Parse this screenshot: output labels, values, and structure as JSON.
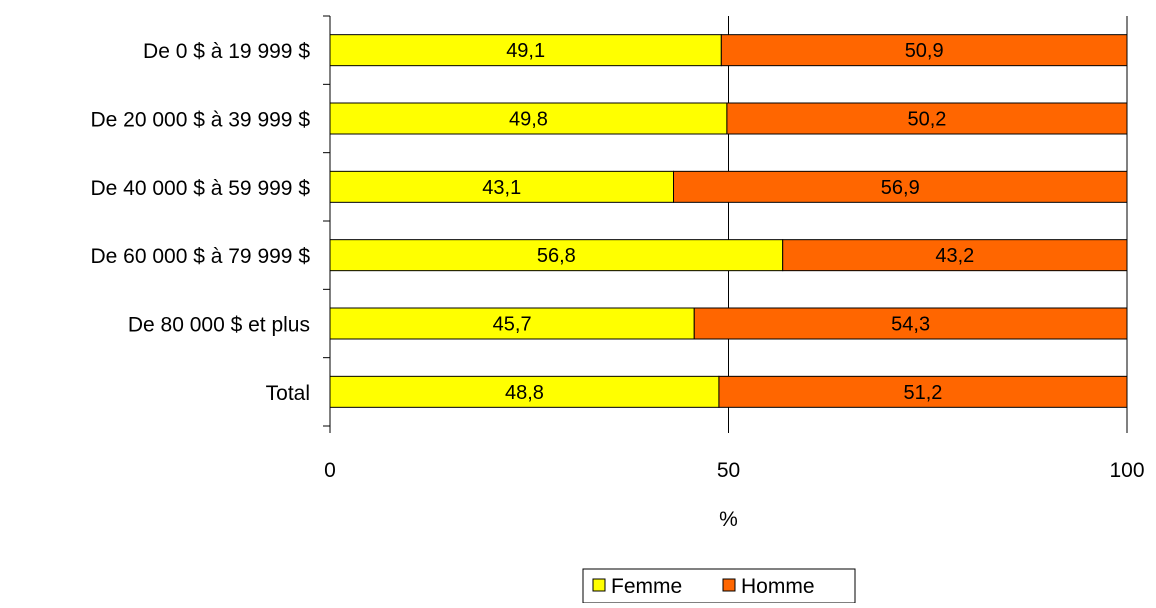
{
  "chart_data": {
    "type": "bar",
    "orientation": "horizontal",
    "stacked": true,
    "categories": [
      "De 0 $ à 19 999 $",
      "De 20 000 $ à 39 999 $",
      "De 40 000 $ à 59 999 $",
      "De 60 000 $ à 79 999 $",
      "De 80 000 $ et plus",
      "Total"
    ],
    "series": [
      {
        "name": "Femme",
        "color": "#ffff00",
        "values": [
          49.1,
          49.8,
          43.1,
          56.8,
          45.7,
          48.8
        ]
      },
      {
        "name": "Homme",
        "color": "#ff6600",
        "values": [
          50.9,
          50.2,
          56.9,
          43.2,
          54.3,
          51.2
        ]
      }
    ],
    "value_labels": [
      [
        "49,1",
        "49,8",
        "43,1",
        "56,8",
        "45,7",
        "48,8"
      ],
      [
        "50,9",
        "50,2",
        "56,9",
        "43,2",
        "54,3",
        "51,2"
      ]
    ],
    "title": "",
    "xlabel": "%",
    "ylabel": "",
    "xlim": [
      0,
      100
    ],
    "xticks": [
      0,
      50,
      100
    ],
    "xtick_labels": [
      "0",
      "50",
      "100"
    ],
    "grid": "vertical major gridlines",
    "legend": "bottom-center"
  }
}
